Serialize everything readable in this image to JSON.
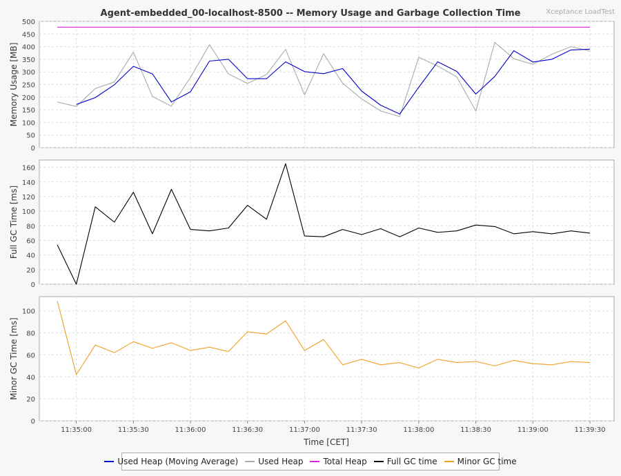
{
  "chart_data": {
    "type": "line",
    "title": "Agent-embedded_00-localhost-8500 -- Memory Usage and Garbage Collection Time",
    "watermark": "Xceptance LoadTest",
    "xlabel": "Time [CET]",
    "x_ticks": [
      "11:35:00",
      "11:35:30",
      "11:36:00",
      "11:36:30",
      "11:37:00",
      "11:37:30",
      "11:38:00",
      "11:38:30",
      "11:39:00",
      "11:39:30"
    ],
    "x": [
      "11:34:50",
      "11:35:00",
      "11:35:10",
      "11:35:20",
      "11:35:30",
      "11:35:40",
      "11:35:50",
      "11:36:00",
      "11:36:10",
      "11:36:20",
      "11:36:30",
      "11:36:40",
      "11:36:50",
      "11:37:00",
      "11:37:10",
      "11:37:20",
      "11:37:30",
      "11:37:40",
      "11:37:50",
      "11:38:00",
      "11:38:10",
      "11:38:20",
      "11:38:30",
      "11:38:40",
      "11:38:50",
      "11:39:00",
      "11:39:10",
      "11:39:20",
      "11:39:30"
    ],
    "panels": [
      {
        "ylabel": "Memory Usage [MB]",
        "ylim": [
          0,
          500
        ],
        "yticks": [
          0,
          50,
          100,
          150,
          200,
          250,
          300,
          350,
          400,
          450,
          500
        ],
        "series": [
          {
            "name": "Used Heap",
            "color": "#aaaaaa",
            "values": [
              181,
              163,
              234,
              260,
              378,
              203,
              164,
              278,
              408,
              292,
              254,
              290,
              389,
              209,
              372,
              255,
              193,
              145,
              123,
              358,
              323,
              280,
              145,
              417,
              352,
              330,
              370,
              400,
              383
            ]
          },
          {
            "name": "Used Heap (Moving Average)",
            "color": "#0000cc",
            "values": [
              null,
              171,
              198,
              249,
              322,
              292,
              181,
              221,
              343,
              350,
              273,
              273,
              340,
              301,
              293,
              313,
              224,
              168,
              133,
              239,
              340,
              302,
              212,
              282,
              384,
              339,
              350,
              387,
              390
            ]
          },
          {
            "name": "Total Heap",
            "color": "#dd22dd",
            "values": [
              477,
              477,
              477,
              477,
              477,
              477,
              477,
              477,
              477,
              477,
              477,
              477,
              477,
              477,
              477,
              477,
              477,
              477,
              477,
              477,
              477,
              477,
              477,
              477,
              477,
              477,
              477,
              477,
              477
            ]
          }
        ]
      },
      {
        "ylabel": "Full GC Time [ms]",
        "ylim": [
          0,
          170
        ],
        "yticks": [
          0,
          20,
          40,
          60,
          80,
          100,
          120,
          140,
          160
        ],
        "series": [
          {
            "name": "Full GC time",
            "color": "#000000",
            "values": [
              54,
              0,
              106,
              85,
              126,
              69,
              130,
              75,
              73,
              77,
              108,
              89,
              165,
              66,
              65,
              75,
              68,
              76,
              65,
              77,
              71,
              73,
              81,
              79,
              69,
              72,
              69,
              73,
              70
            ]
          }
        ]
      },
      {
        "ylabel": "Minor GC Time [ms]",
        "ylim": [
          0,
          113
        ],
        "yticks": [
          0,
          20,
          40,
          60,
          80,
          100
        ],
        "series": [
          {
            "name": "Minor GC time",
            "color": "#f0a020",
            "values": [
              109,
              42,
              69,
              62,
              72,
              66,
              71,
              64,
              67,
              63,
              81,
              79,
              91,
              64,
              74,
              51,
              56,
              51,
              53,
              48,
              56,
              53,
              54,
              50,
              55,
              52,
              51,
              54,
              53
            ]
          }
        ]
      }
    ],
    "legend": [
      {
        "name": "Used Heap (Moving Average)",
        "color": "#0000cc"
      },
      {
        "name": "Used Heap",
        "color": "#aaaaaa"
      },
      {
        "name": "Total Heap",
        "color": "#dd22dd"
      },
      {
        "name": "Full GC time",
        "color": "#000000"
      },
      {
        "name": "Minor GC time",
        "color": "#f0a020"
      }
    ],
    "legend_position": "bottom",
    "grid": true
  }
}
